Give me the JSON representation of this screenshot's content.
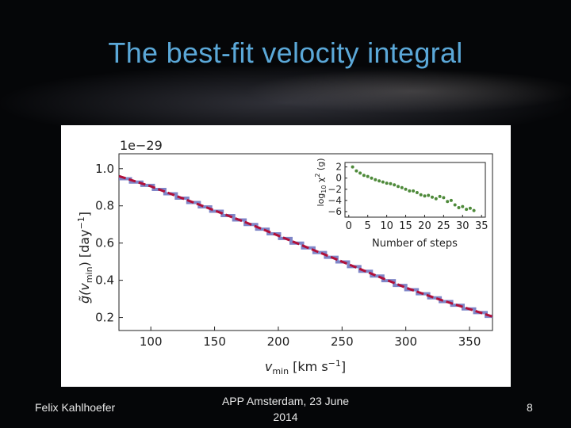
{
  "slide": {
    "title": "The best-fit velocity integral",
    "author": "Felix Kahlhoefer",
    "event_line1": "APP Amsterdam, 23 June",
    "event_line2": "2014",
    "page_number": "8"
  },
  "chart_data": [
    {
      "type": "line",
      "scale_label": "1e−29",
      "xlabel": "v_min [km s^-1]",
      "ylabel": "g̃(v_min) [day^-1]",
      "xlim": [
        75,
        368
      ],
      "ylim": [
        0.13,
        1.08
      ],
      "x_ticks": [
        100,
        150,
        200,
        250,
        300,
        350
      ],
      "y_ticks": [
        0.2,
        0.4,
        0.6,
        0.8,
        1.0
      ],
      "y_tick_labels": [
        "0.2",
        "0.4",
        "0.6",
        "0.8",
        "1.0"
      ],
      "series": [
        {
          "style": "dashed",
          "color": "#b0103a",
          "x": [
            75,
            100,
            125,
            150,
            175,
            200,
            225,
            250,
            275,
            300,
            325,
            350,
            368
          ],
          "y": [
            0.96,
            0.905,
            0.84,
            0.775,
            0.71,
            0.64,
            0.57,
            0.5,
            0.43,
            0.36,
            0.3,
            0.245,
            0.205
          ]
        },
        {
          "style": "step",
          "color": "#7f86c8",
          "x": [
            75,
            100,
            125,
            150,
            175,
            200,
            225,
            250,
            275,
            300,
            325,
            350,
            368
          ],
          "y": [
            0.955,
            0.905,
            0.84,
            0.775,
            0.71,
            0.64,
            0.57,
            0.5,
            0.43,
            0.36,
            0.3,
            0.245,
            0.205
          ]
        }
      ],
      "inset": {
        "type": "scatter",
        "xlabel": "Number of steps",
        "ylabel": "log10 χ^2 (g)",
        "xlim": [
          -1,
          36
        ],
        "ylim": [
          -7,
          2.8
        ],
        "x_ticks": [
          0,
          5,
          10,
          15,
          20,
          25,
          30,
          35
        ],
        "y_ticks": [
          2,
          0,
          -2,
          -4,
          -6
        ],
        "y_tick_labels": [
          "2",
          "0",
          "−2",
          "−4",
          "−6"
        ],
        "color": "#4e8a3a",
        "x": [
          1,
          2,
          3,
          4,
          5,
          6,
          7,
          8,
          9,
          10,
          11,
          12,
          13,
          14,
          15,
          16,
          17,
          18,
          19,
          20,
          21,
          22,
          23,
          24,
          25,
          26,
          27,
          28,
          29,
          30,
          31,
          32,
          33
        ],
        "y": [
          2.0,
          1.3,
          0.9,
          0.5,
          0.3,
          0.0,
          -0.3,
          -0.5,
          -0.7,
          -0.9,
          -1.0,
          -1.2,
          -1.5,
          -1.7,
          -2.0,
          -2.3,
          -2.3,
          -2.6,
          -3.0,
          -3.2,
          -3.1,
          -3.4,
          -3.7,
          -3.3,
          -3.5,
          -4.2,
          -4.0,
          -4.8,
          -5.3,
          -5.1,
          -5.6,
          -5.4,
          -5.8
        ]
      }
    }
  ]
}
